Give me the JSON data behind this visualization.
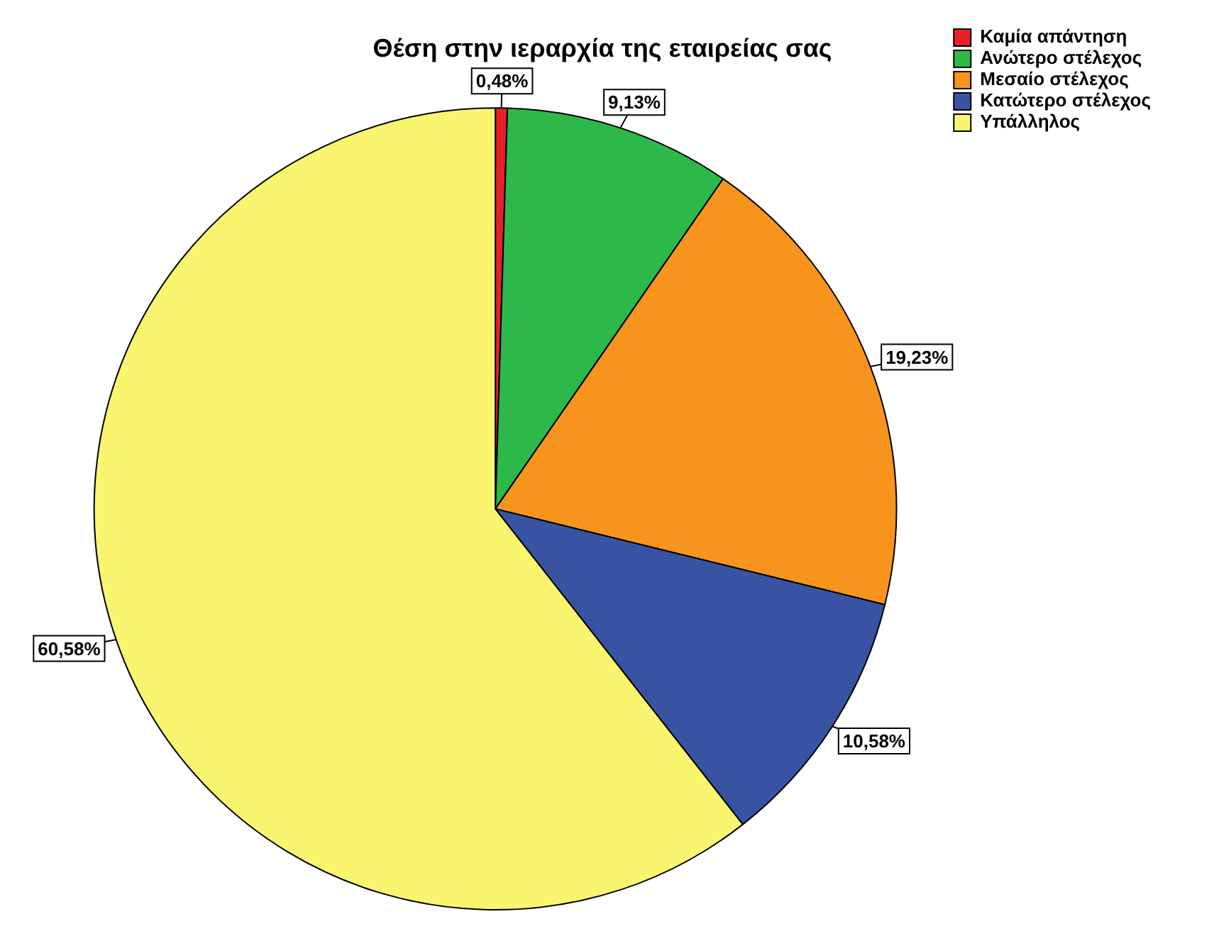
{
  "chart_data": {
    "type": "pie",
    "title": "Θέση στην ιεραρχία της εταιρείας σας",
    "categories": [
      "Καμία απάντηση",
      "Ανώτερο στέλεχος",
      "Μεσαίο στέλεχος",
      "Κατώτερο στέλεχος",
      "Υπάλληλος"
    ],
    "values": [
      0.48,
      9.13,
      19.23,
      10.58,
      60.58
    ],
    "value_labels": [
      "0,48%",
      "9,13%",
      "19,23%",
      "10,58%",
      "60,58%"
    ],
    "colors": [
      "#e8202a",
      "#2db84a",
      "#f7941d",
      "#3953a4",
      "#f9f56e"
    ],
    "legend": "top right"
  }
}
